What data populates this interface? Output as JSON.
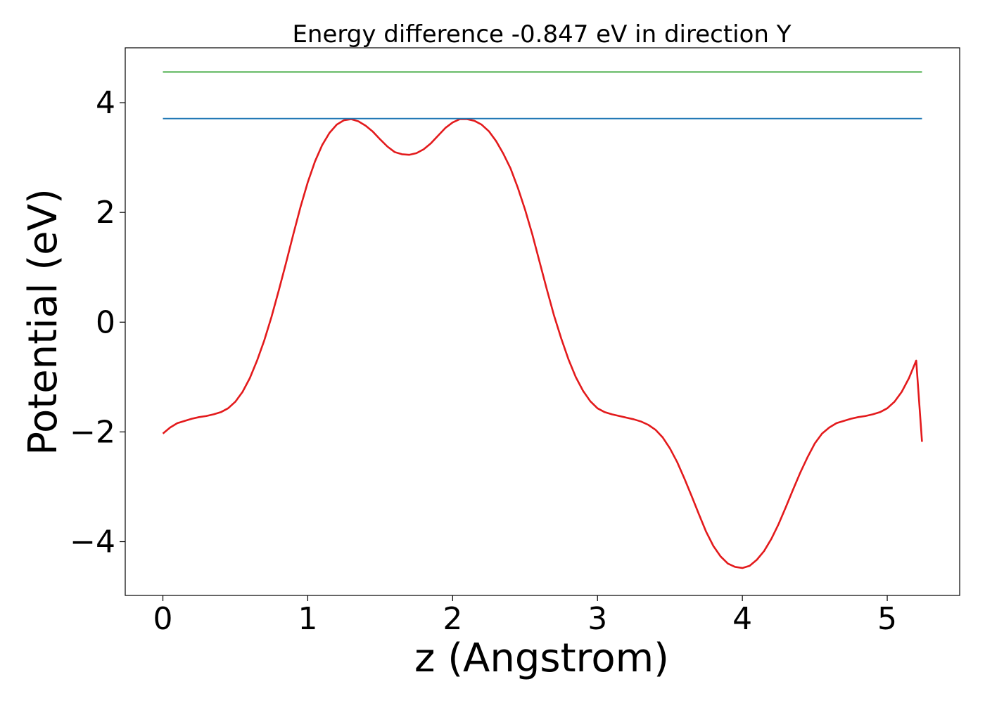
{
  "chart_data": {
    "type": "line",
    "title": "Energy difference -0.847 eV in direction Y",
    "xlabel": "z (Angstrom)",
    "ylabel": "Potential (eV)",
    "xlim": [
      -0.26,
      5.5
    ],
    "ylim": [
      -4.98,
      5.0
    ],
    "xticks": [
      0,
      1,
      2,
      3,
      4,
      5
    ],
    "yticks": [
      -4,
      -2,
      0,
      2,
      4
    ],
    "xtick_labels": [
      "0",
      "1",
      "2",
      "3",
      "4",
      "5"
    ],
    "ytick_labels": [
      "−4",
      "−2",
      "0",
      "2",
      "4"
    ],
    "grid": false,
    "series": [
      {
        "color": "#e31a1c",
        "x": [
          0.0,
          0.05,
          0.1,
          0.15,
          0.2,
          0.25,
          0.3,
          0.35,
          0.4,
          0.45,
          0.5,
          0.55,
          0.6,
          0.65,
          0.7,
          0.75,
          0.8,
          0.85,
          0.9,
          0.95,
          1.0,
          1.05,
          1.1,
          1.15,
          1.2,
          1.25,
          1.3,
          1.35,
          1.4,
          1.45,
          1.5,
          1.55,
          1.6,
          1.65,
          1.7,
          1.75,
          1.8,
          1.85,
          1.9,
          1.95,
          2.0,
          2.05,
          2.1,
          2.15,
          2.2,
          2.25,
          2.3,
          2.35,
          2.4,
          2.45,
          2.5,
          2.55,
          2.6,
          2.65,
          2.7,
          2.75,
          2.8,
          2.85,
          2.9,
          2.95,
          3.0,
          3.05,
          3.1,
          3.15,
          3.2,
          3.25,
          3.3,
          3.35,
          3.4,
          3.45,
          3.5,
          3.55,
          3.6,
          3.65,
          3.7,
          3.75,
          3.8,
          3.85,
          3.9,
          3.95,
          4.0,
          4.05,
          4.1,
          4.15,
          4.2,
          4.25,
          4.3,
          4.35,
          4.4,
          4.45,
          4.5,
          4.55,
          4.6,
          4.65,
          4.7,
          4.75,
          4.8,
          4.85,
          4.9,
          4.95,
          5.0,
          5.05,
          5.1,
          5.15,
          5.2,
          5.24
        ],
        "values": [
          -2.03,
          -1.92,
          -1.84,
          -1.8,
          -1.76,
          -1.73,
          -1.71,
          -1.68,
          -1.64,
          -1.57,
          -1.45,
          -1.27,
          -1.02,
          -0.7,
          -0.33,
          0.1,
          0.58,
          1.08,
          1.6,
          2.1,
          2.55,
          2.93,
          3.23,
          3.45,
          3.6,
          3.68,
          3.7,
          3.66,
          3.58,
          3.47,
          3.33,
          3.2,
          3.1,
          3.06,
          3.05,
          3.08,
          3.15,
          3.26,
          3.4,
          3.54,
          3.64,
          3.7,
          3.7,
          3.67,
          3.6,
          3.48,
          3.3,
          3.07,
          2.8,
          2.45,
          2.05,
          1.6,
          1.1,
          0.6,
          0.12,
          -0.3,
          -0.68,
          -1.0,
          -1.25,
          -1.44,
          -1.57,
          -1.64,
          -1.68,
          -1.71,
          -1.74,
          -1.77,
          -1.81,
          -1.87,
          -1.96,
          -2.1,
          -2.3,
          -2.55,
          -2.85,
          -3.17,
          -3.5,
          -3.82,
          -4.08,
          -4.27,
          -4.4,
          -4.46,
          -4.48,
          -4.44,
          -4.33,
          -4.17,
          -3.95,
          -3.68,
          -3.37,
          -3.05,
          -2.74,
          -2.46,
          -2.21,
          -2.03,
          -1.92,
          -1.84,
          -1.8,
          -1.76,
          -1.73,
          -1.71,
          -1.68,
          -1.64,
          -1.57,
          -1.45,
          -1.27,
          -1.02,
          -0.7,
          -2.18
        ]
      },
      {
        "color": "#1f77b4",
        "x": [
          0.0,
          5.24
        ],
        "values": [
          3.71,
          3.71
        ]
      },
      {
        "color": "#2ca02c",
        "x": [
          0.0,
          5.24
        ],
        "values": [
          4.56,
          4.56
        ]
      }
    ]
  }
}
